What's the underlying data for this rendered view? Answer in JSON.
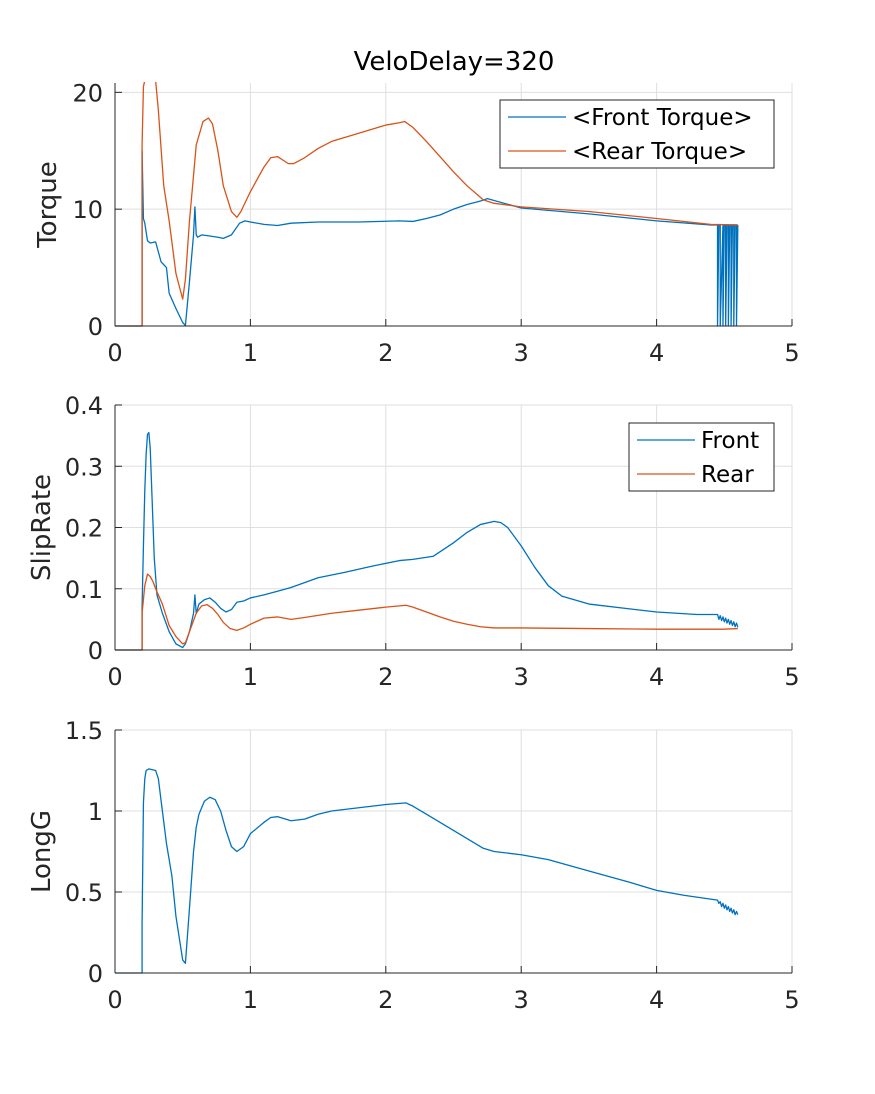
{
  "figure": {
    "title": "VeloDelay=320"
  },
  "colors": {
    "front": "#0072BD",
    "rear": "#D95319",
    "axis": "#262626",
    "grid": "#dfdfdf"
  },
  "chart_data": [
    {
      "type": "line",
      "title": "VeloDelay=320",
      "xlabel": "",
      "ylabel": "Torque",
      "xlim": [
        0,
        5
      ],
      "ylim": [
        0,
        20.8
      ],
      "xticks": [
        0,
        1,
        2,
        3,
        4,
        5
      ],
      "yticks": [
        0,
        10,
        20
      ],
      "grid": true,
      "legend_position": "top-right",
      "series": [
        {
          "name": "<Front Torque>",
          "color_key": "front",
          "x": [
            0,
            0.2,
            0.2,
            0.21,
            0.22,
            0.24,
            0.26,
            0.3,
            0.34,
            0.38,
            0.4,
            0.45,
            0.5,
            0.52,
            0.55,
            0.58,
            0.59,
            0.6,
            0.61,
            0.64,
            0.7,
            0.76,
            0.8,
            0.86,
            0.92,
            0.96,
            1.0,
            1.1,
            1.2,
            1.3,
            1.5,
            1.8,
            2.1,
            2.2,
            2.3,
            2.4,
            2.5,
            2.6,
            2.7,
            2.75,
            3.0,
            3.5,
            4.0,
            4.4,
            4.45,
            4.45,
            4.46,
            4.47,
            4.47,
            4.49,
            4.49,
            4.5,
            4.51,
            4.51,
            4.52,
            4.53,
            4.53,
            4.54,
            4.55,
            4.55,
            4.56,
            4.57,
            4.57,
            4.58,
            4.59,
            4.59,
            4.6
          ],
          "y": [
            0,
            0,
            15,
            9.2,
            8.8,
            7.3,
            7.1,
            7.2,
            5.5,
            5.0,
            2.8,
            1.5,
            0.3,
            0.05,
            3.8,
            7.8,
            10.2,
            7.8,
            7.6,
            7.8,
            7.7,
            7.6,
            7.5,
            7.8,
            8.8,
            9.0,
            8.9,
            8.7,
            8.6,
            8.8,
            8.9,
            8.9,
            9.0,
            8.95,
            9.2,
            9.5,
            10.0,
            10.4,
            10.7,
            10.9,
            10.1,
            9.6,
            9.0,
            8.65,
            8.65,
            0,
            8.65,
            8.65,
            0,
            8.65,
            0,
            8.65,
            8.65,
            0,
            8.65,
            8.65,
            0,
            8.65,
            8.65,
            0,
            8.65,
            8.65,
            0,
            8.65,
            8.65,
            0,
            8.65
          ]
        },
        {
          "name": "<Rear Torque>",
          "color_key": "rear",
          "x": [
            0,
            0.2,
            0.2,
            0.21,
            0.22,
            0.23,
            0.24,
            0.3,
            0.32,
            0.36,
            0.4,
            0.45,
            0.5,
            0.52,
            0.55,
            0.6,
            0.65,
            0.69,
            0.72,
            0.76,
            0.8,
            0.86,
            0.9,
            0.93,
            1.0,
            1.1,
            1.15,
            1.2,
            1.28,
            1.32,
            1.4,
            1.5,
            1.6,
            1.8,
            2.0,
            2.1,
            2.14,
            2.2,
            2.3,
            2.4,
            2.5,
            2.6,
            2.68,
            2.72,
            2.8,
            3.0,
            3.5,
            4.0,
            4.4,
            4.6
          ],
          "y": [
            0,
            0,
            15.5,
            20.5,
            21,
            21,
            21,
            21,
            18.5,
            12.0,
            9.0,
            4.5,
            2.3,
            4.0,
            9.0,
            15.5,
            17.5,
            17.8,
            17.3,
            15.0,
            12.0,
            9.8,
            9.3,
            9.8,
            11.5,
            13.6,
            14.4,
            14.5,
            13.9,
            13.9,
            14.4,
            15.2,
            15.8,
            16.5,
            17.2,
            17.4,
            17.5,
            17.0,
            15.8,
            14.5,
            13.2,
            12.0,
            11.2,
            10.8,
            10.5,
            10.2,
            9.8,
            9.2,
            8.7,
            8.65
          ]
        }
      ]
    },
    {
      "type": "line",
      "title": "",
      "xlabel": "",
      "ylabel": "SlipRate",
      "xlim": [
        0,
        5
      ],
      "ylim": [
        0,
        0.4
      ],
      "xticks": [
        0,
        1,
        2,
        3,
        4,
        5
      ],
      "yticks": [
        0,
        0.1,
        0.2,
        0.3,
        0.4
      ],
      "grid": true,
      "legend_position": "top-right",
      "series": [
        {
          "name": "Front",
          "color_key": "front",
          "x": [
            0,
            0.2,
            0.2,
            0.21,
            0.22,
            0.23,
            0.24,
            0.25,
            0.26,
            0.27,
            0.29,
            0.31,
            0.35,
            0.4,
            0.45,
            0.5,
            0.52,
            0.55,
            0.58,
            0.59,
            0.6,
            0.62,
            0.66,
            0.7,
            0.74,
            0.78,
            0.82,
            0.86,
            0.9,
            0.95,
            1.0,
            1.1,
            1.2,
            1.3,
            1.5,
            1.7,
            1.9,
            2.1,
            2.2,
            2.35,
            2.5,
            2.6,
            2.7,
            2.8,
            2.85,
            2.9,
            3.0,
            3.1,
            3.2,
            3.3,
            3.5,
            4.0,
            4.3,
            4.45,
            4.46,
            4.47,
            4.48,
            4.49,
            4.5,
            4.51,
            4.52,
            4.53,
            4.54,
            4.55,
            4.56,
            4.57,
            4.58,
            4.59,
            4.6
          ],
          "y": [
            0,
            0,
            0.07,
            0.17,
            0.26,
            0.32,
            0.352,
            0.355,
            0.33,
            0.27,
            0.15,
            0.09,
            0.06,
            0.03,
            0.01,
            0.004,
            0.01,
            0.03,
            0.06,
            0.09,
            0.06,
            0.075,
            0.082,
            0.085,
            0.078,
            0.068,
            0.062,
            0.066,
            0.078,
            0.08,
            0.085,
            0.09,
            0.096,
            0.102,
            0.118,
            0.127,
            0.137,
            0.146,
            0.148,
            0.153,
            0.175,
            0.192,
            0.205,
            0.21,
            0.208,
            0.2,
            0.17,
            0.135,
            0.105,
            0.088,
            0.075,
            0.062,
            0.058,
            0.058,
            0.05,
            0.056,
            0.048,
            0.054,
            0.046,
            0.052,
            0.044,
            0.05,
            0.042,
            0.048,
            0.04,
            0.046,
            0.038,
            0.044,
            0.037
          ]
        },
        {
          "name": "Rear",
          "color_key": "rear",
          "x": [
            0,
            0.2,
            0.2,
            0.22,
            0.24,
            0.26,
            0.28,
            0.3,
            0.35,
            0.4,
            0.45,
            0.5,
            0.52,
            0.55,
            0.6,
            0.64,
            0.68,
            0.72,
            0.76,
            0.8,
            0.85,
            0.9,
            0.95,
            1.0,
            1.1,
            1.2,
            1.3,
            1.4,
            1.6,
            1.8,
            2.0,
            2.15,
            2.2,
            2.3,
            2.4,
            2.5,
            2.6,
            2.7,
            2.8,
            3.0,
            3.5,
            4.0,
            4.5,
            4.6
          ],
          "y": [
            0,
            0,
            0.06,
            0.105,
            0.124,
            0.12,
            0.112,
            0.1,
            0.075,
            0.04,
            0.022,
            0.01,
            0.012,
            0.03,
            0.06,
            0.072,
            0.074,
            0.068,
            0.058,
            0.045,
            0.035,
            0.032,
            0.036,
            0.042,
            0.052,
            0.054,
            0.05,
            0.053,
            0.06,
            0.065,
            0.07,
            0.073,
            0.07,
            0.062,
            0.054,
            0.047,
            0.042,
            0.038,
            0.036,
            0.036,
            0.035,
            0.034,
            0.034,
            0.035
          ]
        }
      ]
    },
    {
      "type": "line",
      "title": "",
      "xlabel": "",
      "ylabel": "LongG",
      "xlim": [
        0,
        5
      ],
      "ylim": [
        0,
        1.5
      ],
      "xticks": [
        0,
        1,
        2,
        3,
        4,
        5
      ],
      "yticks": [
        0,
        0.5,
        1,
        1.5
      ],
      "grid": true,
      "legend_position": "none",
      "series": [
        {
          "name": "LongG",
          "color_key": "front",
          "x": [
            0,
            0.2,
            0.2,
            0.21,
            0.22,
            0.23,
            0.25,
            0.3,
            0.32,
            0.35,
            0.38,
            0.42,
            0.45,
            0.5,
            0.52,
            0.55,
            0.58,
            0.6,
            0.62,
            0.66,
            0.7,
            0.74,
            0.78,
            0.82,
            0.86,
            0.9,
            0.95,
            1.0,
            1.1,
            1.15,
            1.2,
            1.3,
            1.4,
            1.5,
            1.6,
            1.8,
            2.0,
            2.15,
            2.2,
            2.3,
            2.4,
            2.5,
            2.6,
            2.72,
            2.8,
            3.0,
            3.2,
            3.5,
            3.8,
            4.0,
            4.2,
            4.45,
            4.46,
            4.47,
            4.48,
            4.49,
            4.5,
            4.51,
            4.52,
            4.53,
            4.54,
            4.55,
            4.56,
            4.57,
            4.58,
            4.59,
            4.6
          ],
          "y": [
            0,
            0,
            0.3,
            1.05,
            1.2,
            1.25,
            1.26,
            1.25,
            1.2,
            1.0,
            0.8,
            0.6,
            0.35,
            0.08,
            0.06,
            0.4,
            0.75,
            0.9,
            0.98,
            1.06,
            1.085,
            1.07,
            1.0,
            0.88,
            0.78,
            0.75,
            0.78,
            0.86,
            0.93,
            0.96,
            0.965,
            0.94,
            0.95,
            0.98,
            1.0,
            1.02,
            1.04,
            1.05,
            1.03,
            0.98,
            0.93,
            0.88,
            0.83,
            0.77,
            0.75,
            0.73,
            0.7,
            0.63,
            0.56,
            0.51,
            0.48,
            0.45,
            0.43,
            0.44,
            0.41,
            0.43,
            0.4,
            0.42,
            0.39,
            0.41,
            0.38,
            0.4,
            0.37,
            0.39,
            0.36,
            0.38,
            0.36
          ]
        }
      ]
    }
  ]
}
